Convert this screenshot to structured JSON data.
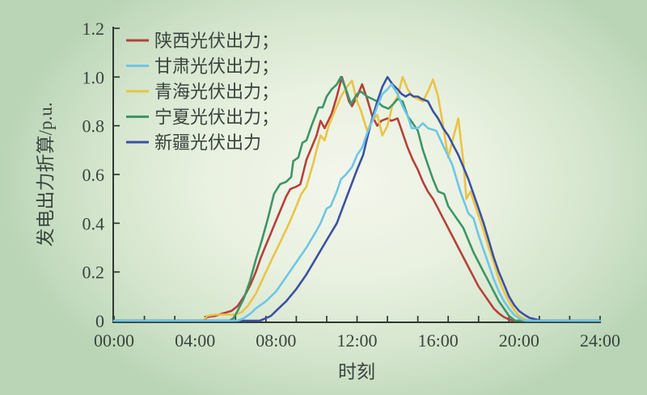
{
  "chart_data": {
    "type": "line",
    "title": "",
    "xlabel": "时刻",
    "ylabel": "发电出力折算/p.u.",
    "xlim_hours": [
      0,
      24
    ],
    "ylim": [
      0,
      1.2
    ],
    "x_tick_hours": [
      0,
      4,
      8,
      12,
      16,
      20,
      24
    ],
    "x_tick_labels": [
      "00:00",
      "04:00",
      "08:00",
      "12:00",
      "16:00",
      "20:00",
      "24:00"
    ],
    "x_minor_tick_hours": 1.5,
    "y_tick_values": [
      0,
      0.2,
      0.4,
      0.6,
      0.8,
      1.0,
      1.2
    ],
    "y_tick_labels": [
      "0",
      "0.2",
      "0.4",
      "0.6",
      "0.8",
      "1.0",
      "1.2"
    ],
    "grid": false,
    "legend_position": "top-left-inside",
    "axis_color": "#2e3833",
    "text_color": "#39433d",
    "background_center": "#f3f6ec",
    "background_edge": "#bad4b6",
    "series": [
      {
        "name": "陕西光伏出力；",
        "region": "陕西",
        "color": "#b5413a",
        "points": [
          [
            0,
            0
          ],
          [
            4.4,
            0
          ],
          [
            4.6,
            0.015
          ],
          [
            5,
            0.02
          ],
          [
            5.4,
            0.03
          ],
          [
            5.8,
            0.04
          ],
          [
            6.1,
            0.06
          ],
          [
            6.5,
            0.11
          ],
          [
            6.75,
            0.15
          ],
          [
            7,
            0.2
          ],
          [
            7.25,
            0.26
          ],
          [
            7.5,
            0.31
          ],
          [
            7.75,
            0.36
          ],
          [
            8,
            0.41
          ],
          [
            8.25,
            0.46
          ],
          [
            8.5,
            0.51
          ],
          [
            8.7,
            0.54
          ],
          [
            9,
            0.55
          ],
          [
            9.2,
            0.56
          ],
          [
            9.5,
            0.66
          ],
          [
            9.75,
            0.71
          ],
          [
            10,
            0.76
          ],
          [
            10.2,
            0.82
          ],
          [
            10.4,
            0.79
          ],
          [
            10.75,
            0.85
          ],
          [
            11,
            0.92
          ],
          [
            11.25,
            1
          ],
          [
            11.4,
            0.96
          ],
          [
            11.6,
            0.9
          ],
          [
            11.75,
            0.88
          ],
          [
            12,
            0.92
          ],
          [
            12.25,
            0.97
          ],
          [
            12.5,
            0.91
          ],
          [
            12.75,
            0.84
          ],
          [
            13,
            0.8
          ],
          [
            13.2,
            0.82
          ],
          [
            13.5,
            0.83
          ],
          [
            13.7,
            0.82
          ],
          [
            14,
            0.83
          ],
          [
            14.25,
            0.77
          ],
          [
            14.5,
            0.71
          ],
          [
            14.75,
            0.66
          ],
          [
            15,
            0.62
          ],
          [
            15.25,
            0.57
          ],
          [
            15.5,
            0.53
          ],
          [
            15.75,
            0.5
          ],
          [
            16,
            0.46
          ],
          [
            16.25,
            0.42
          ],
          [
            16.5,
            0.38
          ],
          [
            16.75,
            0.34
          ],
          [
            17,
            0.3
          ],
          [
            17.25,
            0.26
          ],
          [
            17.5,
            0.22
          ],
          [
            17.75,
            0.18
          ],
          [
            18,
            0.14
          ],
          [
            18.25,
            0.11
          ],
          [
            18.5,
            0.08
          ],
          [
            18.75,
            0.05
          ],
          [
            19,
            0.03
          ],
          [
            19.25,
            0.015
          ],
          [
            19.5,
            0.005
          ],
          [
            19.7,
            0
          ],
          [
            24,
            0
          ]
        ]
      },
      {
        "name": "甘肃光伏出力；",
        "region": "甘肃",
        "color": "#6ec6e6",
        "points": [
          [
            0,
            0
          ],
          [
            6.1,
            0
          ],
          [
            6.4,
            0.01
          ],
          [
            6.75,
            0.03
          ],
          [
            7,
            0.05
          ],
          [
            7.5,
            0.08
          ],
          [
            8,
            0.12
          ],
          [
            8.5,
            0.18
          ],
          [
            9,
            0.24
          ],
          [
            9.5,
            0.3
          ],
          [
            10,
            0.37
          ],
          [
            10.2,
            0.4
          ],
          [
            10.5,
            0.46
          ],
          [
            10.7,
            0.47
          ],
          [
            11,
            0.53
          ],
          [
            11.2,
            0.58
          ],
          [
            11.45,
            0.6
          ],
          [
            11.75,
            0.63
          ],
          [
            12,
            0.68
          ],
          [
            12.25,
            0.71
          ],
          [
            12.5,
            0.77
          ],
          [
            12.75,
            0.82
          ],
          [
            13,
            0.88
          ],
          [
            13.25,
            0.93
          ],
          [
            13.5,
            0.95
          ],
          [
            13.7,
            0.97
          ],
          [
            14,
            0.93
          ],
          [
            14.25,
            0.88
          ],
          [
            14.5,
            0.84
          ],
          [
            14.7,
            0.79
          ],
          [
            15,
            0.79
          ],
          [
            15.25,
            0.81
          ],
          [
            15.5,
            0.79
          ],
          [
            15.9,
            0.78
          ],
          [
            16.3,
            0.71
          ],
          [
            16.7,
            0.64
          ],
          [
            17.1,
            0.53
          ],
          [
            17.5,
            0.44
          ],
          [
            17.75,
            0.42
          ],
          [
            18,
            0.35
          ],
          [
            18.25,
            0.29
          ],
          [
            18.5,
            0.23
          ],
          [
            18.75,
            0.17
          ],
          [
            19,
            0.12
          ],
          [
            19.25,
            0.08
          ],
          [
            19.5,
            0.05
          ],
          [
            19.75,
            0.025
          ],
          [
            20,
            0.01
          ],
          [
            20.3,
            0
          ],
          [
            24,
            0
          ]
        ]
      },
      {
        "name": "青海光伏出力；",
        "region": "青海",
        "color": "#e9c446",
        "points": [
          [
            0,
            0
          ],
          [
            4.4,
            0
          ],
          [
            4.6,
            0.02
          ],
          [
            5,
            0.025
          ],
          [
            6,
            0.025
          ],
          [
            6.3,
            0.035
          ],
          [
            6.6,
            0.06
          ],
          [
            7,
            0.11
          ],
          [
            7.5,
            0.2
          ],
          [
            7.9,
            0.27
          ],
          [
            8.25,
            0.33
          ],
          [
            8.7,
            0.41
          ],
          [
            9,
            0.47
          ],
          [
            9.25,
            0.52
          ],
          [
            9.5,
            0.55
          ],
          [
            9.85,
            0.65
          ],
          [
            10,
            0.7
          ],
          [
            10.2,
            0.76
          ],
          [
            10.4,
            0.74
          ],
          [
            10.6,
            0.8
          ],
          [
            10.8,
            0.84
          ],
          [
            11,
            0.88
          ],
          [
            11.2,
            0.92
          ],
          [
            11.5,
            0.96
          ],
          [
            11.75,
            0.985
          ],
          [
            12,
            0.9
          ],
          [
            12.2,
            0.86
          ],
          [
            12.5,
            0.78
          ],
          [
            12.75,
            0.82
          ],
          [
            13,
            0.845
          ],
          [
            13.25,
            0.76
          ],
          [
            13.5,
            0.8
          ],
          [
            13.75,
            0.885
          ],
          [
            14,
            0.92
          ],
          [
            14.25,
            1
          ],
          [
            14.5,
            0.95
          ],
          [
            14.75,
            0.92
          ],
          [
            15,
            0.91
          ],
          [
            15.25,
            0.9
          ],
          [
            15.5,
            0.94
          ],
          [
            15.75,
            0.99
          ],
          [
            16,
            0.92
          ],
          [
            16.25,
            0.8
          ],
          [
            16.5,
            0.67
          ],
          [
            16.75,
            0.75
          ],
          [
            17,
            0.83
          ],
          [
            17.25,
            0.65
          ],
          [
            17.4,
            0.5
          ],
          [
            17.6,
            0.53
          ],
          [
            18,
            0.43
          ],
          [
            18.25,
            0.37
          ],
          [
            18.5,
            0.3
          ],
          [
            18.75,
            0.24
          ],
          [
            19,
            0.17
          ],
          [
            19.25,
            0.12
          ],
          [
            19.5,
            0.08
          ],
          [
            19.75,
            0.045
          ],
          [
            20,
            0.02
          ],
          [
            20.4,
            0
          ],
          [
            24,
            0
          ]
        ]
      },
      {
        "name": "宁夏光伏出力；",
        "region": "宁夏",
        "color": "#3d9566",
        "points": [
          [
            0,
            0
          ],
          [
            5.7,
            0
          ],
          [
            5.9,
            0.01
          ],
          [
            6.1,
            0.04
          ],
          [
            6.4,
            0.09
          ],
          [
            6.7,
            0.16
          ],
          [
            7,
            0.25
          ],
          [
            7.3,
            0.33
          ],
          [
            7.6,
            0.42
          ],
          [
            7.9,
            0.52
          ],
          [
            8.2,
            0.56
          ],
          [
            8.5,
            0.57
          ],
          [
            8.75,
            0.59
          ],
          [
            8.85,
            0.655
          ],
          [
            9.1,
            0.67
          ],
          [
            9.3,
            0.73
          ],
          [
            9.5,
            0.74
          ],
          [
            9.75,
            0.8
          ],
          [
            10.1,
            0.875
          ],
          [
            10.3,
            0.875
          ],
          [
            10.5,
            0.92
          ],
          [
            10.75,
            0.95
          ],
          [
            11,
            0.97
          ],
          [
            11.2,
            1
          ],
          [
            11.45,
            0.95
          ],
          [
            11.7,
            0.89
          ],
          [
            12,
            0.93
          ],
          [
            12.2,
            0.94
          ],
          [
            12.5,
            0.92
          ],
          [
            12.75,
            0.91
          ],
          [
            13,
            0.9
          ],
          [
            13.25,
            0.88
          ],
          [
            13.55,
            0.87
          ],
          [
            13.8,
            0.89
          ],
          [
            14,
            0.91
          ],
          [
            14.25,
            0.9
          ],
          [
            14.5,
            0.84
          ],
          [
            14.75,
            0.81
          ],
          [
            15,
            0.78
          ],
          [
            15.25,
            0.7
          ],
          [
            15.5,
            0.64
          ],
          [
            15.75,
            0.58
          ],
          [
            16,
            0.53
          ],
          [
            16.3,
            0.52
          ],
          [
            16.5,
            0.47
          ],
          [
            16.75,
            0.44
          ],
          [
            17,
            0.41
          ],
          [
            17.25,
            0.38
          ],
          [
            17.5,
            0.33
          ],
          [
            17.75,
            0.28
          ],
          [
            18,
            0.24
          ],
          [
            18.25,
            0.2
          ],
          [
            18.5,
            0.16
          ],
          [
            18.75,
            0.12
          ],
          [
            19,
            0.08
          ],
          [
            19.25,
            0.05
          ],
          [
            19.5,
            0.02
          ],
          [
            19.8,
            0
          ],
          [
            24,
            0
          ]
        ]
      },
      {
        "name": "新疆光伏出力",
        "region": "新疆",
        "color": "#3c51a3",
        "points": [
          [
            0,
            0
          ],
          [
            7.2,
            0
          ],
          [
            7.5,
            0.01
          ],
          [
            7.75,
            0.02
          ],
          [
            8,
            0.04
          ],
          [
            8.5,
            0.08
          ],
          [
            9,
            0.13
          ],
          [
            9.5,
            0.19
          ],
          [
            10,
            0.26
          ],
          [
            10.5,
            0.33
          ],
          [
            11,
            0.4
          ],
          [
            11.5,
            0.51
          ],
          [
            12,
            0.62
          ],
          [
            12.3,
            0.68
          ],
          [
            12.5,
            0.75
          ],
          [
            12.75,
            0.83
          ],
          [
            13,
            0.9
          ],
          [
            13.25,
            0.96
          ],
          [
            13.5,
            1
          ],
          [
            13.75,
            0.97
          ],
          [
            14,
            0.95
          ],
          [
            14.2,
            0.93
          ],
          [
            14.4,
            0.92
          ],
          [
            14.6,
            0.93
          ],
          [
            14.8,
            0.92
          ],
          [
            15,
            0.92
          ],
          [
            15.2,
            0.91
          ],
          [
            15.5,
            0.9
          ],
          [
            15.75,
            0.86
          ],
          [
            16,
            0.83
          ],
          [
            16.25,
            0.79
          ],
          [
            16.5,
            0.76
          ],
          [
            16.75,
            0.72
          ],
          [
            17,
            0.68
          ],
          [
            17.25,
            0.63
          ],
          [
            17.5,
            0.58
          ],
          [
            17.75,
            0.52
          ],
          [
            18,
            0.46
          ],
          [
            18.25,
            0.4
          ],
          [
            18.5,
            0.33
          ],
          [
            18.75,
            0.26
          ],
          [
            19,
            0.2
          ],
          [
            19.25,
            0.15
          ],
          [
            19.5,
            0.1
          ],
          [
            19.75,
            0.065
          ],
          [
            20,
            0.04
          ],
          [
            20.25,
            0.025
          ],
          [
            20.5,
            0.012
          ],
          [
            21.1,
            0
          ],
          [
            24,
            0
          ]
        ]
      }
    ]
  }
}
